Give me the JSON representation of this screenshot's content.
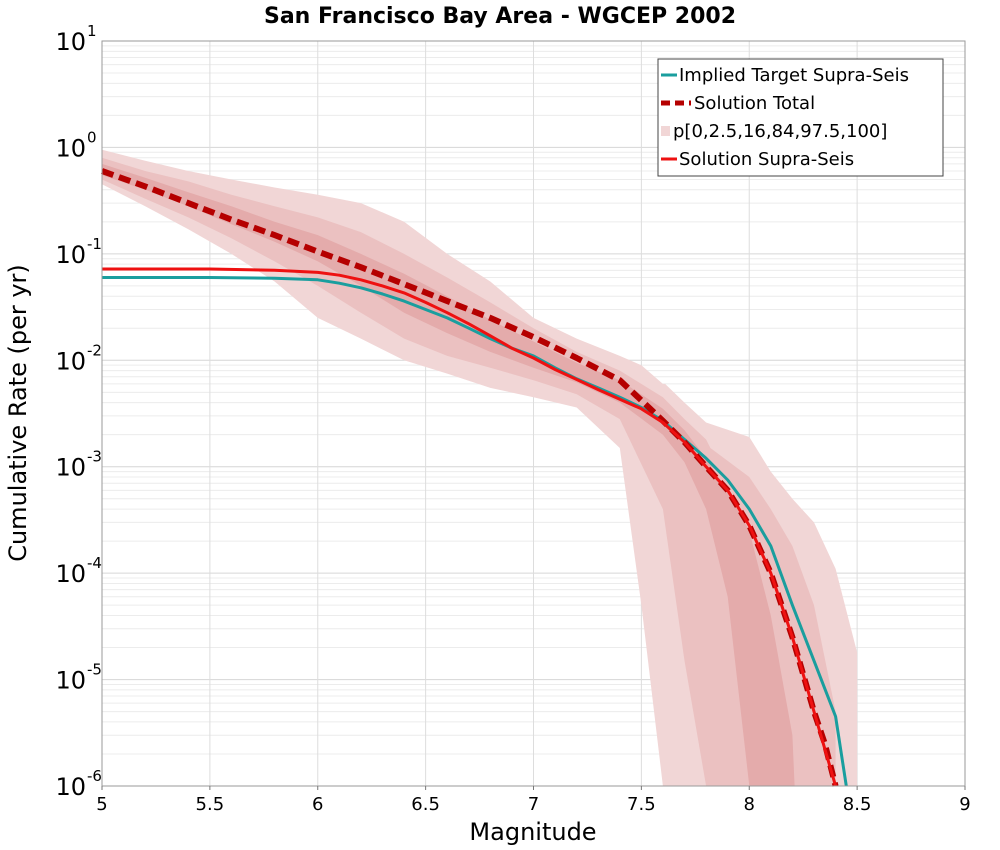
{
  "chart_data": {
    "type": "line",
    "title": "San Francisco Bay Area - WGCEP 2002",
    "xlabel": "Magnitude",
    "ylabel": "Cumulative Rate (per yr)",
    "xlim": [
      5,
      9
    ],
    "ylim": [
      1e-06,
      10
    ],
    "yscale": "log",
    "grid": true,
    "legend_position": "top-right",
    "x_ticks": [
      "5",
      "5.5",
      "6",
      "6.5",
      "7",
      "7.5",
      "8",
      "8.5",
      "9"
    ],
    "y_ticks": [
      {
        "base": "10",
        "exp": "-6",
        "value": 1e-06
      },
      {
        "base": "10",
        "exp": "-5",
        "value": 1e-05
      },
      {
        "base": "10",
        "exp": "-4",
        "value": 0.0001
      },
      {
        "base": "10",
        "exp": "-3",
        "value": 0.001
      },
      {
        "base": "10",
        "exp": "-2",
        "value": 0.01
      },
      {
        "base": "10",
        "exp": "-1",
        "value": 0.1
      },
      {
        "base": "10",
        "exp": "0",
        "value": 1
      },
      {
        "base": "10",
        "exp": "1",
        "value": 10
      }
    ],
    "bands": [
      {
        "name": "p[0,2.5,16,84,97.5,100]",
        "level": "outer",
        "color": "#f1d6d6",
        "x": [
          5.0,
          5.2,
          5.4,
          5.6,
          5.8,
          6.0,
          6.2,
          6.4,
          6.6,
          6.8,
          7.0,
          7.2,
          7.4,
          7.5,
          7.6,
          7.61,
          7.7,
          7.8,
          8.0,
          8.1,
          8.2,
          8.3,
          8.4,
          8.5
        ],
        "upper": [
          0.95,
          0.75,
          0.6,
          0.5,
          0.42,
          0.36,
          0.3,
          0.2,
          0.1,
          0.055,
          0.025,
          0.016,
          0.011,
          0.009,
          0.006,
          0.006,
          0.004,
          0.0026,
          0.0019,
          0.0009,
          0.0005,
          0.0003,
          0.00011,
          1.8e-05
        ],
        "lower": [
          0.45,
          0.28,
          0.17,
          0.1,
          0.055,
          0.025,
          0.016,
          0.01,
          0.0075,
          0.0055,
          0.0045,
          0.0036,
          0.0015,
          5e-05,
          1e-06,
          1e-06,
          1e-06,
          1e-06,
          1e-06,
          1e-06,
          1e-06,
          1e-06,
          1e-06,
          1e-06
        ]
      },
      {
        "name": "p[0,2.5,16,84,97.5,100]",
        "level": "middle",
        "color": "#ebc1c1",
        "x": [
          5.0,
          5.2,
          5.4,
          5.6,
          5.8,
          6.0,
          6.2,
          6.4,
          6.6,
          6.8,
          7.0,
          7.2,
          7.4,
          7.6,
          7.7,
          7.8,
          7.82,
          8.0,
          8.1,
          8.2,
          8.3,
          8.4
        ],
        "upper": [
          0.8,
          0.6,
          0.48,
          0.36,
          0.28,
          0.22,
          0.16,
          0.1,
          0.06,
          0.035,
          0.02,
          0.012,
          0.008,
          0.0045,
          0.0028,
          0.0018,
          0.0015,
          0.0008,
          0.0004,
          0.00018,
          5e-05,
          5e-06
        ],
        "lower": [
          0.5,
          0.33,
          0.22,
          0.14,
          0.085,
          0.05,
          0.028,
          0.016,
          0.011,
          0.0085,
          0.0065,
          0.0048,
          0.0028,
          0.0004,
          1.5e-05,
          1e-06,
          1e-06,
          1e-06,
          1e-06,
          1e-06,
          1e-06,
          1e-06
        ]
      },
      {
        "name": "p[0,2.5,16,84,97.5,100]",
        "level": "inner",
        "color": "#e4abab",
        "x": [
          5.0,
          5.2,
          5.4,
          5.6,
          5.8,
          6.0,
          6.2,
          6.4,
          6.6,
          6.8,
          7.0,
          7.2,
          7.4,
          7.6,
          7.7,
          7.8,
          7.9,
          8.0,
          8.1,
          8.2,
          8.21
        ],
        "upper": [
          0.7,
          0.52,
          0.38,
          0.28,
          0.2,
          0.15,
          0.1,
          0.065,
          0.04,
          0.024,
          0.015,
          0.0095,
          0.0065,
          0.0035,
          0.0022,
          0.0012,
          0.0006,
          0.00025,
          4e-05,
          3e-06,
          1e-06
        ],
        "lower": [
          0.55,
          0.4,
          0.28,
          0.19,
          0.13,
          0.085,
          0.05,
          0.028,
          0.018,
          0.012,
          0.0085,
          0.0062,
          0.004,
          0.002,
          0.0011,
          0.0004,
          6e-05,
          1e-06,
          1e-06,
          1e-06,
          1e-06
        ]
      }
    ],
    "series": [
      {
        "name": "Implied Target Supra-Seis",
        "color": "#1a9e9e",
        "dash": "solid",
        "width": 3,
        "x": [
          5.0,
          5.5,
          5.8,
          6.0,
          6.1,
          6.2,
          6.3,
          6.4,
          6.5,
          6.6,
          6.7,
          6.8,
          6.9,
          7.0,
          7.1,
          7.2,
          7.3,
          7.4,
          7.5,
          7.6,
          7.7,
          7.8,
          7.9,
          8.0,
          8.1,
          8.2,
          8.3,
          8.4,
          8.45
        ],
        "y": [
          0.06,
          0.06,
          0.059,
          0.057,
          0.053,
          0.048,
          0.042,
          0.036,
          0.03,
          0.025,
          0.02,
          0.016,
          0.013,
          0.011,
          0.0085,
          0.0067,
          0.0055,
          0.0045,
          0.0036,
          0.0027,
          0.0018,
          0.0012,
          0.00075,
          0.0004,
          0.00018,
          5e-05,
          1.5e-05,
          4.5e-06,
          1e-06
        ]
      },
      {
        "name": "Solution Total",
        "color": "#b50000",
        "dash": "dashed",
        "width": 6,
        "x": [
          5.0,
          5.2,
          5.4,
          5.6,
          5.8,
          6.0,
          6.2,
          6.4,
          6.6,
          6.8,
          7.0,
          7.2,
          7.4,
          7.5,
          7.6,
          7.7,
          7.8,
          7.9,
          8.0,
          8.1,
          8.2,
          8.3,
          8.35,
          8.4
        ],
        "y": [
          0.6,
          0.43,
          0.3,
          0.21,
          0.15,
          0.105,
          0.075,
          0.052,
          0.036,
          0.025,
          0.0165,
          0.0105,
          0.0065,
          0.0042,
          0.0027,
          0.0017,
          0.001,
          0.0006,
          0.00028,
          0.0001,
          2.5e-05,
          5e-06,
          2.5e-06,
          1e-06
        ]
      },
      {
        "name": "Solution Supra-Seis",
        "color": "#ee1111",
        "dash": "solid",
        "width": 3,
        "x": [
          5.0,
          5.5,
          5.8,
          6.0,
          6.1,
          6.2,
          6.3,
          6.4,
          6.5,
          6.6,
          6.7,
          6.8,
          6.9,
          7.0,
          7.1,
          7.2,
          7.3,
          7.4,
          7.5,
          7.6,
          7.7,
          7.8,
          7.9,
          8.0,
          8.1,
          8.2,
          8.3,
          8.4
        ],
        "y": [
          0.072,
          0.072,
          0.07,
          0.067,
          0.063,
          0.057,
          0.05,
          0.043,
          0.035,
          0.028,
          0.022,
          0.017,
          0.013,
          0.0105,
          0.0082,
          0.0066,
          0.0053,
          0.0043,
          0.0035,
          0.0026,
          0.0017,
          0.001,
          0.0006,
          0.00028,
          0.0001,
          2.5e-05,
          5e-06,
          1e-06
        ]
      }
    ]
  }
}
